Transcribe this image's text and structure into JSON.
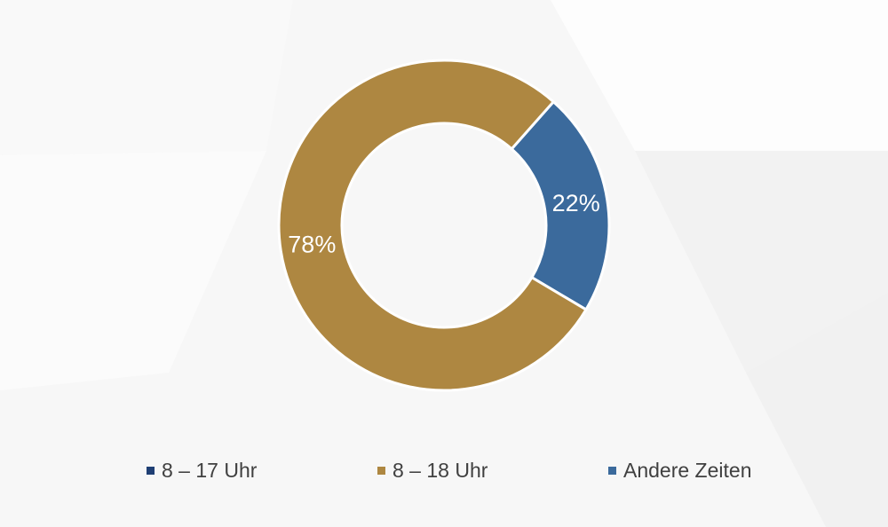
{
  "chart_data": {
    "type": "pie",
    "title": "",
    "categories": [
      "8 – 17 Uhr",
      "8 – 18 Uhr",
      "Andere Zeiten"
    ],
    "values": [
      0,
      78,
      22
    ],
    "data_labels": [
      "",
      "78%",
      "22%"
    ],
    "colors": [
      "#1f3f74",
      "#ae8741",
      "#3b6a9c"
    ],
    "donut": true,
    "legend_position": "bottom"
  }
}
